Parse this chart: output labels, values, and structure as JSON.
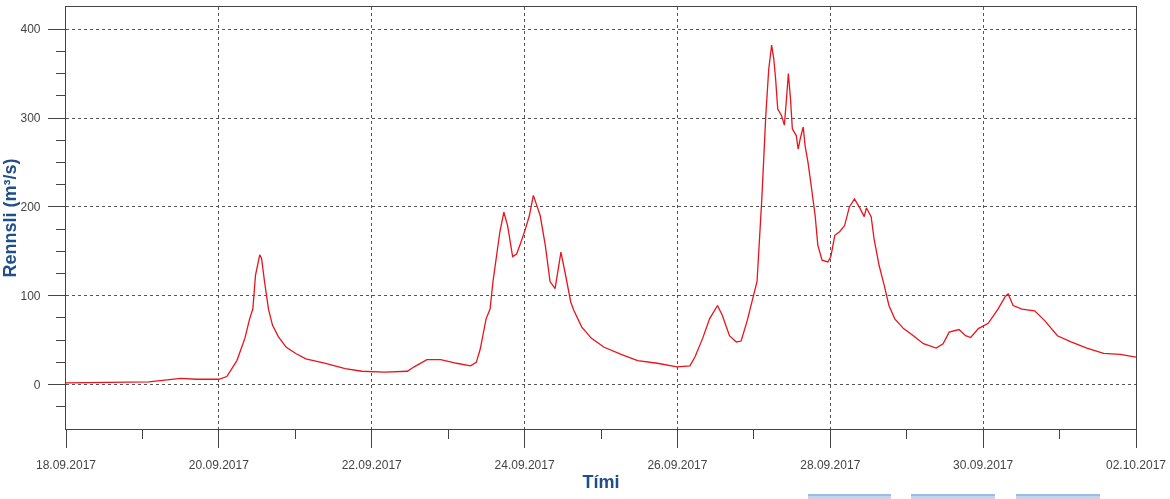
{
  "chart_data": {
    "type": "line",
    "xlabel": "Tími",
    "ylabel": "Rennsli (m³/s)",
    "color": "#e8141c",
    "line_style": "solid",
    "grid": true,
    "x": [
      "2017-09-18T00:00",
      "2017-09-19T02:00",
      "2017-09-19T12:00",
      "2017-09-19T17:00",
      "2017-09-20T00:00",
      "2017-09-20T02:30",
      "2017-09-20T05:40",
      "2017-09-20T08:10",
      "2017-09-20T09:40",
      "2017-09-20T10:40",
      "2017-09-20T11:30",
      "2017-09-20T12:50",
      "2017-09-20T13:25",
      "2017-09-20T14:20",
      "2017-09-20T15:35",
      "2017-09-20T16:50",
      "2017-09-20T18:40",
      "2017-09-20T21:10",
      "2017-09-21T00:10",
      "2017-09-21T03:20",
      "2017-09-21T09:30",
      "2017-09-21T15:40",
      "2017-09-21T20:55",
      "2017-09-22T04:05",
      "2017-09-22T11:10",
      "2017-09-22T13:20",
      "2017-09-22T17:20",
      "2017-09-22T21:40",
      "2017-09-23T02:40",
      "2017-09-23T07:00",
      "2017-09-23T08:50",
      "2017-09-23T10:05",
      "2017-09-23T11:55",
      "2017-09-23T13:10",
      "2017-09-23T14:05",
      "2017-09-23T16:15",
      "2017-09-23T17:30",
      "2017-09-23T18:40",
      "2017-09-23T20:15",
      "2017-09-23T21:30",
      "2017-09-23T22:45",
      "2017-09-24T00:15",
      "2017-09-24T01:30",
      "2017-09-24T02:45",
      "2017-09-24T04:00",
      "2017-09-24T04:55",
      "2017-09-24T06:30",
      "2017-09-24T08:00",
      "2017-09-24T09:35",
      "2017-09-24T11:25",
      "2017-09-24T12:40",
      "2017-09-24T14:30",
      "2017-09-24T15:25",
      "2017-09-24T17:55",
      "2017-09-24T21:00",
      "2017-09-25T01:00",
      "2017-09-25T06:20",
      "2017-09-25T11:30",
      "2017-09-25T17:40",
      "2017-09-25T23:55",
      "2017-09-26T03:55",
      "2017-09-26T05:30",
      "2017-09-26T07:55",
      "2017-09-26T10:05",
      "2017-09-26T12:35",
      "2017-09-26T14:05",
      "2017-09-26T16:20",
      "2017-09-26T18:30",
      "2017-09-26T20:00",
      "2017-09-26T21:55",
      "2017-09-27T01:00",
      "2017-09-27T02:30",
      "2017-09-27T03:45",
      "2017-09-27T04:40",
      "2017-09-27T05:35",
      "2017-09-27T06:15",
      "2017-09-27T06:50",
      "2017-09-27T07:30",
      "2017-09-27T08:40",
      "2017-09-27T09:35",
      "2017-09-27T10:15",
      "2017-09-27T10:50",
      "2017-09-27T11:30",
      "2017-09-27T12:05",
      "2017-09-27T13:20",
      "2017-09-27T13:55",
      "2017-09-27T14:35",
      "2017-09-27T15:30",
      "2017-09-27T16:05",
      "2017-09-27T17:00",
      "2017-09-27T18:00",
      "2017-09-27T19:15",
      "2017-09-27T20:05",
      "2017-09-27T21:25",
      "2017-09-27T23:15",
      "2017-09-28T00:10",
      "2017-09-28T01:25",
      "2017-09-28T02:55",
      "2017-09-28T04:30",
      "2017-09-28T06:00",
      "2017-09-28T07:35",
      "2017-09-28T09:05",
      "2017-09-28T10:40",
      "2017-09-28T11:20",
      "2017-09-28T12:50",
      "2017-09-28T13:45",
      "2017-09-28T15:20",
      "2017-09-28T16:55",
      "2017-09-28T18:25",
      "2017-09-28T20:15",
      "2017-09-28T23:00",
      "2017-09-29T02:05",
      "2017-09-29T05:15",
      "2017-09-29T09:15",
      "2017-09-29T11:25",
      "2017-09-29T13:20",
      "2017-09-29T16:25",
      "2017-09-29T18:30",
      "2017-09-29T20:05",
      "2017-09-29T22:30",
      "2017-09-30T01:35",
      "2017-09-30T04:40",
      "2017-09-30T06:55",
      "2017-09-30T07:50",
      "2017-09-30T09:25",
      "2017-09-30T12:10",
      "2017-09-30T16:10",
      "2017-09-30T19:20",
      "2017-09-30T23:20",
      "2017-10-01T03:35",
      "2017-10-01T08:35",
      "2017-10-01T13:50",
      "2017-10-01T19:05",
      "2017-10-02T00:00"
    ],
    "values": [
      2,
      3,
      7,
      6,
      6,
      9,
      27,
      52,
      74,
      85,
      123,
      146,
      142,
      116,
      85,
      67,
      54,
      42,
      35,
      29,
      24,
      18,
      15,
      14,
      15,
      20,
      28,
      28,
      24,
      21,
      25,
      40,
      74,
      85,
      116,
      172,
      194,
      179,
      144,
      147,
      159,
      175,
      190,
      213,
      200,
      190,
      157,
      116,
      108,
      149,
      127,
      93,
      84,
      65,
      52,
      42,
      34,
      27,
      24,
      20,
      21,
      31,
      52,
      74,
      89,
      78,
      55,
      48,
      49,
      72,
      116,
      209,
      303,
      355,
      382,
      367,
      344,
      310,
      303,
      292,
      322,
      350,
      322,
      288,
      280,
      265,
      277,
      290,
      269,
      250,
      224,
      190,
      157,
      140,
      138,
      144,
      168,
      172,
      179,
      200,
      209,
      200,
      189,
      199,
      189,
      164,
      134,
      112,
      89,
      74,
      63,
      55,
      46,
      41,
      46,
      59,
      62,
      55,
      53,
      63,
      69,
      85,
      99,
      102,
      89,
      85,
      83,
      72,
      55,
      48,
      41,
      35,
      34,
      31
    ],
    "xlim": [
      "2017-09-18",
      "2017-10-02"
    ],
    "xticks": [
      {
        "value": "2017-09-18",
        "label": "18.09.2017"
      },
      {
        "value": "2017-09-19",
        "label": null
      },
      {
        "value": "2017-09-20",
        "label": "20.09.2017"
      },
      {
        "value": "2017-09-21",
        "label": null
      },
      {
        "value": "2017-09-22",
        "label": "22.09.2017"
      },
      {
        "value": "2017-09-23",
        "label": null
      },
      {
        "value": "2017-09-24",
        "label": "24.09.2017"
      },
      {
        "value": "2017-09-25",
        "label": null
      },
      {
        "value": "2017-09-26",
        "label": "26.09.2017"
      },
      {
        "value": "2017-09-27",
        "label": null
      },
      {
        "value": "2017-09-28",
        "label": "28.09.2017"
      },
      {
        "value": "2017-09-29",
        "label": null
      },
      {
        "value": "2017-09-30",
        "label": "30.09.2017"
      },
      {
        "value": "2017-10-01",
        "label": null
      },
      {
        "value": "2017-10-02",
        "label": "02.10.2017"
      }
    ],
    "ylim": [
      -50,
      425
    ],
    "yticks": [
      {
        "value": -25,
        "label": null
      },
      0,
      {
        "value": 25,
        "label": null
      },
      {
        "value": 50,
        "label": null
      },
      {
        "value": 75,
        "label": null
      },
      100,
      {
        "value": 125,
        "label": null
      },
      {
        "value": 150,
        "label": null
      },
      {
        "value": 175,
        "label": null
      },
      200,
      {
        "value": 225,
        "label": null
      },
      {
        "value": 250,
        "label": null
      },
      {
        "value": 275,
        "label": null
      },
      300,
      {
        "value": 325,
        "label": null
      },
      {
        "value": 350,
        "label": null
      },
      {
        "value": 375,
        "label": null
      },
      400
    ]
  }
}
